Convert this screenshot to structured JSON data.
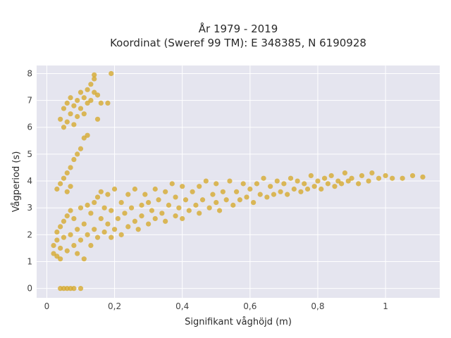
{
  "chart_data": {
    "type": "scatter",
    "title_lines": [
      "År 1979 - 2019",
      "Koordinat (Sweref 99 TM): E 348385, N 6190928"
    ],
    "xlabel": "Signifikant våghöjd (m)",
    "ylabel": "Vågperiod (s)",
    "xlim": [
      -0.03,
      1.16
    ],
    "ylim": [
      -0.35,
      8.3
    ],
    "x_ticks": [
      0,
      0.2,
      0.4,
      0.6,
      0.8,
      1
    ],
    "x_tick_labels": [
      "0",
      "0,2",
      "0,4",
      "0,6",
      "0,8",
      "1"
    ],
    "y_ticks": [
      0,
      1,
      2,
      3,
      4,
      5,
      6,
      7,
      8
    ],
    "y_tick_labels": [
      "0",
      "1",
      "2",
      "3",
      "4",
      "5",
      "6",
      "7",
      "8"
    ],
    "grid": true,
    "legend": "none",
    "colors": {
      "marker": "#d4a623",
      "plot_bg": "#e5e5ef",
      "grid": "#ffffff"
    },
    "points": [
      [
        0.02,
        1.3
      ],
      [
        0.02,
        1.6
      ],
      [
        0.03,
        1.2
      ],
      [
        0.03,
        1.8
      ],
      [
        0.03,
        2.1
      ],
      [
        0.04,
        1.5
      ],
      [
        0.04,
        2.3
      ],
      [
        0.04,
        1.1
      ],
      [
        0.05,
        1.9
      ],
      [
        0.05,
        2.5
      ],
      [
        0.06,
        1.4
      ],
      [
        0.06,
        2.7
      ],
      [
        0.07,
        2.0
      ],
      [
        0.07,
        2.9
      ],
      [
        0.08,
        1.6
      ],
      [
        0.08,
        2.6
      ],
      [
        0.09,
        1.3
      ],
      [
        0.09,
        2.2
      ],
      [
        0.1,
        3.0
      ],
      [
        0.1,
        1.8
      ],
      [
        0.11,
        2.4
      ],
      [
        0.11,
        1.1
      ],
      [
        0.12,
        3.1
      ],
      [
        0.12,
        2.0
      ],
      [
        0.13,
        2.8
      ],
      [
        0.13,
        1.6
      ],
      [
        0.14,
        3.2
      ],
      [
        0.14,
        2.2
      ],
      [
        0.15,
        3.4
      ],
      [
        0.15,
        1.9
      ],
      [
        0.16,
        2.6
      ],
      [
        0.16,
        3.6
      ],
      [
        0.17,
        2.1
      ],
      [
        0.17,
        3.0
      ],
      [
        0.18,
        2.4
      ],
      [
        0.18,
        3.5
      ],
      [
        0.19,
        1.9
      ],
      [
        0.19,
        2.9
      ],
      [
        0.2,
        2.2
      ],
      [
        0.2,
        3.7
      ],
      [
        0.21,
        2.6
      ],
      [
        0.22,
        3.2
      ],
      [
        0.22,
        2.0
      ],
      [
        0.23,
        2.8
      ],
      [
        0.24,
        3.5
      ],
      [
        0.24,
        2.3
      ],
      [
        0.25,
        3.0
      ],
      [
        0.26,
        2.5
      ],
      [
        0.26,
        3.7
      ],
      [
        0.27,
        2.2
      ],
      [
        0.28,
        3.1
      ],
      [
        0.28,
        2.7
      ],
      [
        0.29,
        3.5
      ],
      [
        0.3,
        2.4
      ],
      [
        0.3,
        3.2
      ],
      [
        0.31,
        2.9
      ],
      [
        0.32,
        3.7
      ],
      [
        0.32,
        2.6
      ],
      [
        0.33,
        3.3
      ],
      [
        0.34,
        2.8
      ],
      [
        0.35,
        3.6
      ],
      [
        0.35,
        2.5
      ],
      [
        0.36,
        3.1
      ],
      [
        0.37,
        3.9
      ],
      [
        0.38,
        2.7
      ],
      [
        0.38,
        3.4
      ],
      [
        0.39,
        3.0
      ],
      [
        0.4,
        3.8
      ],
      [
        0.4,
        2.6
      ],
      [
        0.41,
        3.3
      ],
      [
        0.42,
        2.9
      ],
      [
        0.43,
        3.6
      ],
      [
        0.44,
        3.1
      ],
      [
        0.45,
        2.8
      ],
      [
        0.45,
        3.8
      ],
      [
        0.46,
        3.3
      ],
      [
        0.47,
        4.0
      ],
      [
        0.48,
        3.0
      ],
      [
        0.49,
        3.5
      ],
      [
        0.5,
        3.2
      ],
      [
        0.5,
        3.9
      ],
      [
        0.51,
        2.9
      ],
      [
        0.52,
        3.6
      ],
      [
        0.53,
        3.3
      ],
      [
        0.54,
        4.0
      ],
      [
        0.55,
        3.1
      ],
      [
        0.56,
        3.6
      ],
      [
        0.57,
        3.3
      ],
      [
        0.58,
        3.9
      ],
      [
        0.59,
        3.4
      ],
      [
        0.6,
        3.7
      ],
      [
        0.61,
        3.2
      ],
      [
        0.62,
        3.9
      ],
      [
        0.63,
        3.5
      ],
      [
        0.64,
        4.1
      ],
      [
        0.65,
        3.4
      ],
      [
        0.66,
        3.8
      ],
      [
        0.67,
        3.5
      ],
      [
        0.68,
        4.0
      ],
      [
        0.69,
        3.6
      ],
      [
        0.7,
        3.9
      ],
      [
        0.71,
        3.5
      ],
      [
        0.72,
        4.1
      ],
      [
        0.73,
        3.7
      ],
      [
        0.74,
        4.0
      ],
      [
        0.75,
        3.6
      ],
      [
        0.76,
        3.9
      ],
      [
        0.77,
        3.7
      ],
      [
        0.78,
        4.2
      ],
      [
        0.79,
        3.8
      ],
      [
        0.8,
        4.0
      ],
      [
        0.81,
        3.7
      ],
      [
        0.82,
        4.1
      ],
      [
        0.83,
        3.9
      ],
      [
        0.84,
        4.2
      ],
      [
        0.85,
        3.8
      ],
      [
        0.86,
        4.0
      ],
      [
        0.87,
        3.9
      ],
      [
        0.88,
        4.3
      ],
      [
        0.89,
        4.0
      ],
      [
        0.9,
        4.1
      ],
      [
        0.92,
        3.9
      ],
      [
        0.93,
        4.2
      ],
      [
        0.95,
        4.0
      ],
      [
        0.96,
        4.3
      ],
      [
        0.98,
        4.1
      ],
      [
        1.0,
        4.2
      ],
      [
        1.02,
        4.1
      ],
      [
        1.05,
        4.1
      ],
      [
        1.08,
        4.2
      ],
      [
        1.11,
        4.15
      ],
      [
        0.03,
        3.7
      ],
      [
        0.04,
        3.9
      ],
      [
        0.05,
        4.1
      ],
      [
        0.06,
        4.3
      ],
      [
        0.06,
        3.6
      ],
      [
        0.07,
        4.5
      ],
      [
        0.07,
        3.8
      ],
      [
        0.08,
        4.8
      ],
      [
        0.09,
        5.0
      ],
      [
        0.1,
        5.2
      ],
      [
        0.04,
        6.3
      ],
      [
        0.05,
        6.0
      ],
      [
        0.05,
        6.7
      ],
      [
        0.06,
        6.2
      ],
      [
        0.06,
        6.9
      ],
      [
        0.07,
        6.5
      ],
      [
        0.07,
        7.1
      ],
      [
        0.08,
        6.8
      ],
      [
        0.08,
        6.1
      ],
      [
        0.09,
        7.0
      ],
      [
        0.09,
        6.4
      ],
      [
        0.1,
        7.3
      ],
      [
        0.1,
        6.7
      ],
      [
        0.11,
        7.1
      ],
      [
        0.11,
        6.5
      ],
      [
        0.12,
        7.4
      ],
      [
        0.12,
        6.9
      ],
      [
        0.13,
        7.6
      ],
      [
        0.13,
        7.0
      ],
      [
        0.14,
        7.3
      ],
      [
        0.14,
        7.8
      ],
      [
        0.15,
        7.2
      ],
      [
        0.11,
        5.6
      ],
      [
        0.12,
        5.7
      ],
      [
        0.15,
        6.3
      ],
      [
        0.16,
        6.9
      ],
      [
        0.18,
        6.9
      ],
      [
        0.19,
        8.0
      ],
      [
        0.14,
        7.95
      ],
      [
        0.04,
        0.0
      ],
      [
        0.05,
        0.0
      ],
      [
        0.06,
        0.0
      ],
      [
        0.07,
        0.0
      ],
      [
        0.08,
        0.0
      ],
      [
        0.1,
        0.0
      ]
    ]
  }
}
